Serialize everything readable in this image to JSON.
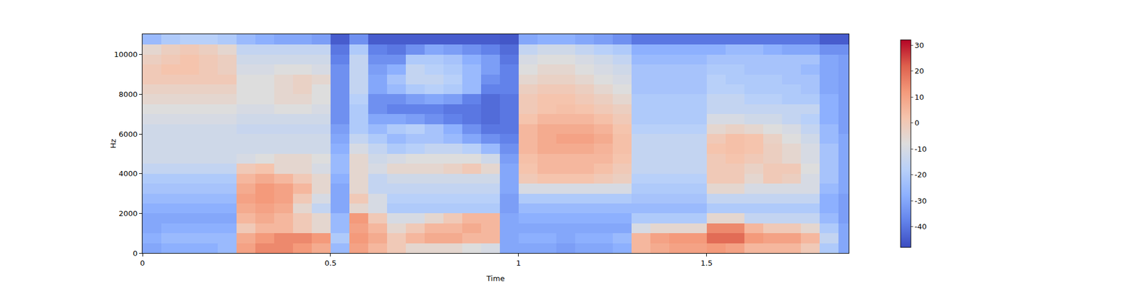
{
  "chart_data": {
    "type": "heatmap",
    "x_label": "Time",
    "y_label": "Hz",
    "x": [
      0,
      0.05,
      0.1,
      0.15,
      0.2,
      0.25,
      0.3,
      0.35,
      0.4,
      0.45,
      0.5,
      0.55,
      0.6,
      0.65,
      0.7,
      0.75,
      0.8,
      0.85,
      0.9,
      0.95,
      1,
      1.05,
      1.1,
      1.15,
      1.2,
      1.25,
      1.3,
      1.35,
      1.4,
      1.45,
      1.5,
      1.55,
      1.6,
      1.65,
      1.7,
      1.75,
      1.8,
      1.85,
      1.9
    ],
    "y": [
      0,
      500,
      1000,
      1500,
      2000,
      2500,
      3000,
      3500,
      4000,
      4500,
      5000,
      5500,
      6000,
      6500,
      7000,
      7500,
      8000,
      8500,
      9000,
      9500,
      10000,
      10500,
      11025
    ],
    "xlim": [
      0,
      1.878
    ],
    "xticks": [
      0,
      0.5,
      1,
      1.5
    ],
    "ylim": [
      0,
      11025
    ],
    "yticks": [
      0,
      2000,
      4000,
      6000,
      8000,
      10000
    ],
    "colorbar": {
      "range": [
        -48,
        32
      ],
      "ticks": [
        -40,
        -30,
        -20,
        -10,
        0,
        10,
        20,
        30
      ]
    },
    "cells": [
      [
        -30,
        -28,
        -28,
        -28,
        -25,
        10,
        15,
        15,
        12,
        8,
        -25,
        10,
        5,
        0,
        -5,
        -5,
        -5,
        -8,
        -10,
        -30,
        -30,
        -30,
        -32,
        -30,
        -30,
        -28,
        5,
        8,
        10,
        10,
        12,
        10,
        5,
        5,
        5,
        0,
        -20,
        -30
      ],
      [
        -28,
        -25,
        -25,
        -25,
        -25,
        8,
        12,
        15,
        15,
        12,
        -20,
        12,
        8,
        0,
        5,
        8,
        8,
        5,
        5,
        -30,
        -28,
        -28,
        -30,
        -28,
        -28,
        -25,
        5,
        10,
        12,
        12,
        20,
        20,
        12,
        10,
        10,
        5,
        -15,
        -30
      ],
      [
        -30,
        -28,
        -28,
        -28,
        -28,
        0,
        5,
        5,
        0,
        -5,
        -25,
        10,
        5,
        -5,
        0,
        5,
        5,
        8,
        5,
        -30,
        -30,
        -30,
        -30,
        -30,
        -30,
        -30,
        -10,
        -5,
        -5,
        -5,
        15,
        15,
        5,
        0,
        0,
        -5,
        -20,
        -30
      ],
      [
        -30,
        -30,
        -30,
        -30,
        -30,
        5,
        8,
        5,
        0,
        -5,
        -25,
        12,
        0,
        -10,
        -10,
        -5,
        0,
        5,
        5,
        -30,
        -28,
        -28,
        -28,
        -28,
        -28,
        -28,
        -20,
        -20,
        -20,
        -20,
        -5,
        -5,
        -15,
        -15,
        -15,
        -15,
        -25,
        -32
      ],
      [
        -28,
        -28,
        -28,
        -28,
        -28,
        8,
        10,
        8,
        -5,
        -15,
        -30,
        -5,
        -10,
        -20,
        -20,
        -20,
        -20,
        -20,
        -20,
        -32,
        -25,
        -25,
        -25,
        -25,
        -25,
        -25,
        -25,
        -25,
        -25,
        -25,
        -20,
        -20,
        -20,
        -20,
        -20,
        -20,
        -28,
        -32
      ],
      [
        -25,
        -25,
        -25,
        -25,
        -25,
        10,
        12,
        10,
        0,
        -10,
        -30,
        0,
        -10,
        -18,
        -18,
        -18,
        -18,
        -18,
        -18,
        -32,
        -20,
        -20,
        -20,
        -20,
        -20,
        -20,
        -22,
        -22,
        -22,
        -22,
        -15,
        -15,
        -15,
        -15,
        -15,
        -15,
        -28,
        -32
      ],
      [
        -22,
        -22,
        -22,
        -22,
        -22,
        8,
        12,
        10,
        5,
        -5,
        -30,
        -5,
        -15,
        -15,
        -15,
        -15,
        -15,
        -15,
        -15,
        -30,
        -10,
        -10,
        -10,
        -10,
        -10,
        -10,
        -20,
        -20,
        -20,
        -20,
        -5,
        -5,
        -10,
        -10,
        -10,
        -10,
        -25,
        -30
      ],
      [
        -20,
        -20,
        -20,
        -20,
        -20,
        5,
        8,
        5,
        0,
        -5,
        -28,
        -5,
        -15,
        -12,
        -12,
        -12,
        -12,
        -12,
        -12,
        -30,
        0,
        2,
        2,
        2,
        0,
        -2,
        -18,
        -18,
        -18,
        -18,
        0,
        0,
        -5,
        0,
        -2,
        -10,
        -22,
        -30
      ],
      [
        -15,
        -15,
        -15,
        -15,
        -15,
        0,
        2,
        -5,
        -5,
        -10,
        -25,
        -5,
        -10,
        -5,
        -5,
        -5,
        -3,
        0,
        -5,
        -30,
        2,
        5,
        5,
        5,
        3,
        0,
        -15,
        -15,
        -15,
        -15,
        0,
        0,
        -3,
        0,
        0,
        -8,
        -22,
        -30
      ],
      [
        -12,
        -12,
        -12,
        -12,
        -12,
        -10,
        -8,
        -5,
        -5,
        -8,
        -25,
        -5,
        -12,
        -10,
        -8,
        -8,
        -8,
        -8,
        -12,
        -32,
        3,
        5,
        5,
        5,
        5,
        2,
        -15,
        -15,
        -15,
        -15,
        0,
        2,
        0,
        -2,
        -5,
        -10,
        -22,
        -30
      ],
      [
        -12,
        -12,
        -12,
        -12,
        -12,
        -12,
        -12,
        -12,
        -12,
        -12,
        -28,
        -10,
        -15,
        -20,
        -18,
        -15,
        -15,
        -18,
        -25,
        -35,
        5,
        8,
        8,
        8,
        6,
        3,
        -15,
        -15,
        -15,
        -15,
        2,
        3,
        2,
        -2,
        -5,
        -10,
        -22,
        -30
      ],
      [
        -12,
        -12,
        -12,
        -12,
        -12,
        -12,
        -12,
        -12,
        -12,
        -12,
        -30,
        -15,
        -20,
        -25,
        -22,
        -22,
        -25,
        -30,
        -35,
        -38,
        5,
        8,
        10,
        10,
        8,
        3,
        -15,
        -15,
        -15,
        -15,
        0,
        3,
        2,
        -3,
        -8,
        -12,
        -25,
        -30
      ],
      [
        -12,
        -12,
        -12,
        -12,
        -12,
        -14,
        -14,
        -14,
        -14,
        -14,
        -32,
        -20,
        -25,
        -20,
        -18,
        -22,
        -28,
        -35,
        -40,
        -40,
        5,
        8,
        8,
        8,
        6,
        2,
        -18,
        -18,
        -18,
        -18,
        -5,
        -3,
        -5,
        -8,
        -10,
        -15,
        -25,
        -32
      ],
      [
        -10,
        -10,
        -10,
        -10,
        -10,
        -12,
        -12,
        -12,
        -12,
        -12,
        -35,
        -20,
        -30,
        -30,
        -32,
        -35,
        -38,
        -40,
        -42,
        -40,
        2,
        5,
        5,
        5,
        3,
        0,
        -20,
        -20,
        -20,
        -20,
        -10,
        -10,
        -12,
        -12,
        -15,
        -18,
        -28,
        -32
      ],
      [
        -8,
        -8,
        -8,
        -8,
        -8,
        -10,
        -10,
        -8,
        -8,
        -10,
        -35,
        -20,
        -35,
        -38,
        -38,
        -38,
        -40,
        -40,
        -42,
        -40,
        0,
        2,
        3,
        2,
        0,
        -2,
        -20,
        -20,
        -20,
        -20,
        -15,
        -15,
        -15,
        -15,
        -15,
        -15,
        -28,
        -32
      ],
      [
        -5,
        -5,
        -5,
        -5,
        -5,
        -8,
        -8,
        -5,
        -5,
        -8,
        -35,
        -18,
        -35,
        -35,
        -32,
        -30,
        -32,
        -38,
        -42,
        -40,
        0,
        2,
        2,
        0,
        -2,
        -5,
        -20,
        -20,
        -20,
        -20,
        -15,
        -15,
        -18,
        -18,
        -20,
        -20,
        -28,
        -32
      ],
      [
        -3,
        -3,
        -3,
        -3,
        -3,
        -8,
        -8,
        -5,
        -3,
        -8,
        -35,
        -15,
        -30,
        -25,
        -20,
        -18,
        -20,
        -25,
        -38,
        -38,
        -2,
        0,
        0,
        -2,
        -5,
        -8,
        -22,
        -22,
        -22,
        -22,
        -18,
        -18,
        -20,
        -20,
        -20,
        -22,
        -30,
        -32
      ],
      [
        0,
        0,
        0,
        0,
        0,
        -8,
        -8,
        -5,
        -3,
        -5,
        -35,
        -15,
        -30,
        -22,
        -15,
        -15,
        -18,
        -25,
        -35,
        -38,
        -5,
        -3,
        -3,
        -5,
        -8,
        -10,
        -22,
        -22,
        -22,
        -22,
        -18,
        -20,
        -20,
        -20,
        -22,
        -22,
        -30,
        -32
      ],
      [
        0,
        2,
        2,
        0,
        -2,
        -10,
        -10,
        -8,
        -8,
        -10,
        -35,
        -15,
        -32,
        -28,
        -15,
        -18,
        -20,
        -25,
        -32,
        -38,
        -8,
        -5,
        -5,
        -8,
        -10,
        -12,
        -22,
        -22,
        -22,
        -22,
        -20,
        -20,
        -22,
        -22,
        -22,
        -25,
        -30,
        -32
      ],
      [
        -2,
        0,
        2,
        0,
        -2,
        -12,
        -12,
        -12,
        -12,
        -12,
        -38,
        -15,
        -35,
        -35,
        -20,
        -20,
        -22,
        -28,
        -32,
        -40,
        -10,
        -8,
        -8,
        -10,
        -12,
        -15,
        -25,
        -25,
        -25,
        -25,
        -22,
        -22,
        -22,
        -22,
        -22,
        -22,
        -30,
        -32
      ],
      [
        -5,
        -2,
        0,
        -2,
        -5,
        -15,
        -15,
        -15,
        -15,
        -15,
        -40,
        -20,
        -38,
        -40,
        -35,
        -30,
        -32,
        -35,
        -38,
        -42,
        -15,
        -12,
        -12,
        -15,
        -18,
        -20,
        -28,
        -28,
        -28,
        -28,
        -28,
        -25,
        -25,
        -28,
        -30,
        -30,
        -35,
        -35
      ],
      [
        -25,
        -20,
        -18,
        -18,
        -20,
        -25,
        -28,
        -30,
        -30,
        -32,
        -45,
        -35,
        -45,
        -45,
        -45,
        -45,
        -45,
        -45,
        -45,
        -46,
        -30,
        -28,
        -28,
        -30,
        -32,
        -35,
        -40,
        -40,
        -40,
        -40,
        -40,
        -40,
        -40,
        -40,
        -40,
        -40,
        -45,
        -45
      ]
    ]
  }
}
